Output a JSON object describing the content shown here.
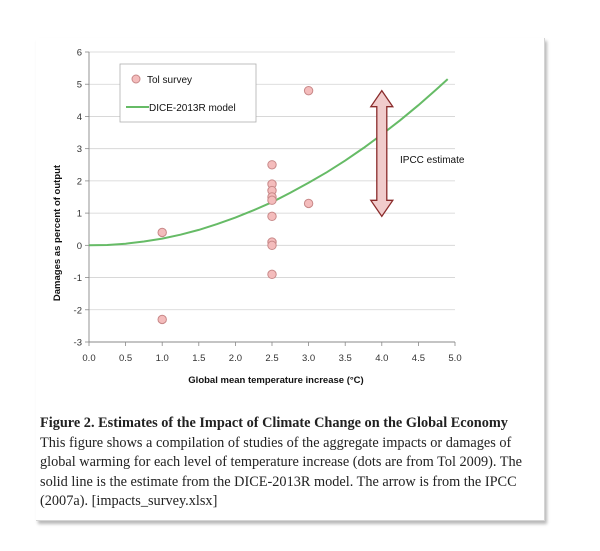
{
  "chart_data": {
    "type": "scatter",
    "xlabel": "Global mean temperature increase (°C)",
    "ylabel": "Damages as percent of output",
    "xlim": [
      0,
      5
    ],
    "ylim": [
      -3,
      6
    ],
    "xticks": [
      "0.0",
      "0.5",
      "1.0",
      "1.5",
      "2.0",
      "2.5",
      "3.0",
      "3.5",
      "4.0",
      "4.5",
      "5.0"
    ],
    "yticks": [
      "-3",
      "-2",
      "-1",
      "0",
      "1",
      "2",
      "3",
      "4",
      "5",
      "6"
    ],
    "grid": true,
    "legend_position": "top-left",
    "series": [
      {
        "name": "Tol survey",
        "kind": "scatter",
        "color": "#f4bcbc",
        "edge_color": "#c88888",
        "points": [
          {
            "x": 1.0,
            "y": 0.4
          },
          {
            "x": 1.0,
            "y": -2.3
          },
          {
            "x": 2.5,
            "y": 2.5
          },
          {
            "x": 2.5,
            "y": 1.9
          },
          {
            "x": 2.5,
            "y": 1.7
          },
          {
            "x": 2.5,
            "y": 1.5
          },
          {
            "x": 2.5,
            "y": 1.4
          },
          {
            "x": 2.5,
            "y": 0.9
          },
          {
            "x": 2.5,
            "y": 0.1
          },
          {
            "x": 2.5,
            "y": 0.0
          },
          {
            "x": 2.5,
            "y": -0.9
          },
          {
            "x": 3.0,
            "y": 4.8
          },
          {
            "x": 3.0,
            "y": 1.3
          }
        ]
      },
      {
        "name": "DICE-2013R model",
        "kind": "line",
        "color": "#66bb66",
        "x": [
          0.0,
          0.25,
          0.5,
          0.75,
          1.0,
          1.25,
          1.5,
          1.75,
          2.0,
          2.25,
          2.5,
          2.75,
          3.0,
          3.25,
          3.5,
          3.75,
          4.0,
          4.25,
          4.5,
          4.75,
          4.9
        ],
        "y": [
          0.0,
          0.01,
          0.05,
          0.12,
          0.21,
          0.33,
          0.48,
          0.66,
          0.86,
          1.09,
          1.34,
          1.63,
          1.94,
          2.27,
          2.63,
          3.02,
          3.44,
          3.88,
          4.35,
          4.85,
          5.16
        ]
      }
    ],
    "annotation": {
      "text": "IPCC estimate",
      "x": 4.0,
      "y_low": 0.9,
      "y_high": 4.8,
      "fill": "#f1cccc",
      "stroke": "#8a2b2b"
    }
  },
  "caption": {
    "title": "Figure 2. Estimates of the Impact of Climate Change on the Global Economy",
    "body": "This figure shows a compilation of studies of the aggregate impacts or damages of global warming for each level of temperature increase (dots are from Tol 2009). The solid line is the estimate from the DICE-2013R model. The arrow is from the IPCC (2007a). [impacts_survey.xlsx]"
  }
}
